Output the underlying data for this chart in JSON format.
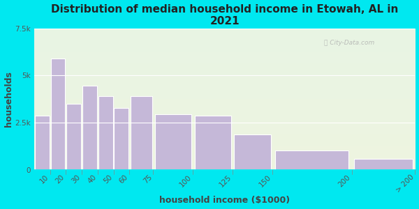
{
  "title": "Distribution of median household income in Etowah, AL in\n2021",
  "xlabel": "household income ($1000)",
  "ylabel": "households",
  "bin_edges": [
    0,
    10,
    20,
    30,
    40,
    50,
    60,
    75,
    100,
    125,
    150,
    200,
    240
  ],
  "bin_labels": [
    "10",
    "20",
    "30",
    "40",
    "50",
    "60",
    "75",
    "100",
    "125",
    "150",
    "200",
    "> 200"
  ],
  "values": [
    2900,
    5900,
    3500,
    4450,
    3900,
    3300,
    3900,
    2950,
    2900,
    1900,
    1050,
    600
  ],
  "bar_color": "#c5b8d8",
  "bar_edge_color": "#ffffff",
  "background_outer": "#00e8f0",
  "background_inner_top": "#e8f4e4",
  "background_inner_bottom": "#eef4e0",
  "ylim": [
    0,
    7500
  ],
  "yticks": [
    0,
    2500,
    5000,
    7500
  ],
  "ytick_labels": [
    "0",
    "2.5k",
    "5k",
    "7.5k"
  ],
  "title_fontsize": 11,
  "axis_label_fontsize": 9,
  "tick_fontsize": 7.5
}
